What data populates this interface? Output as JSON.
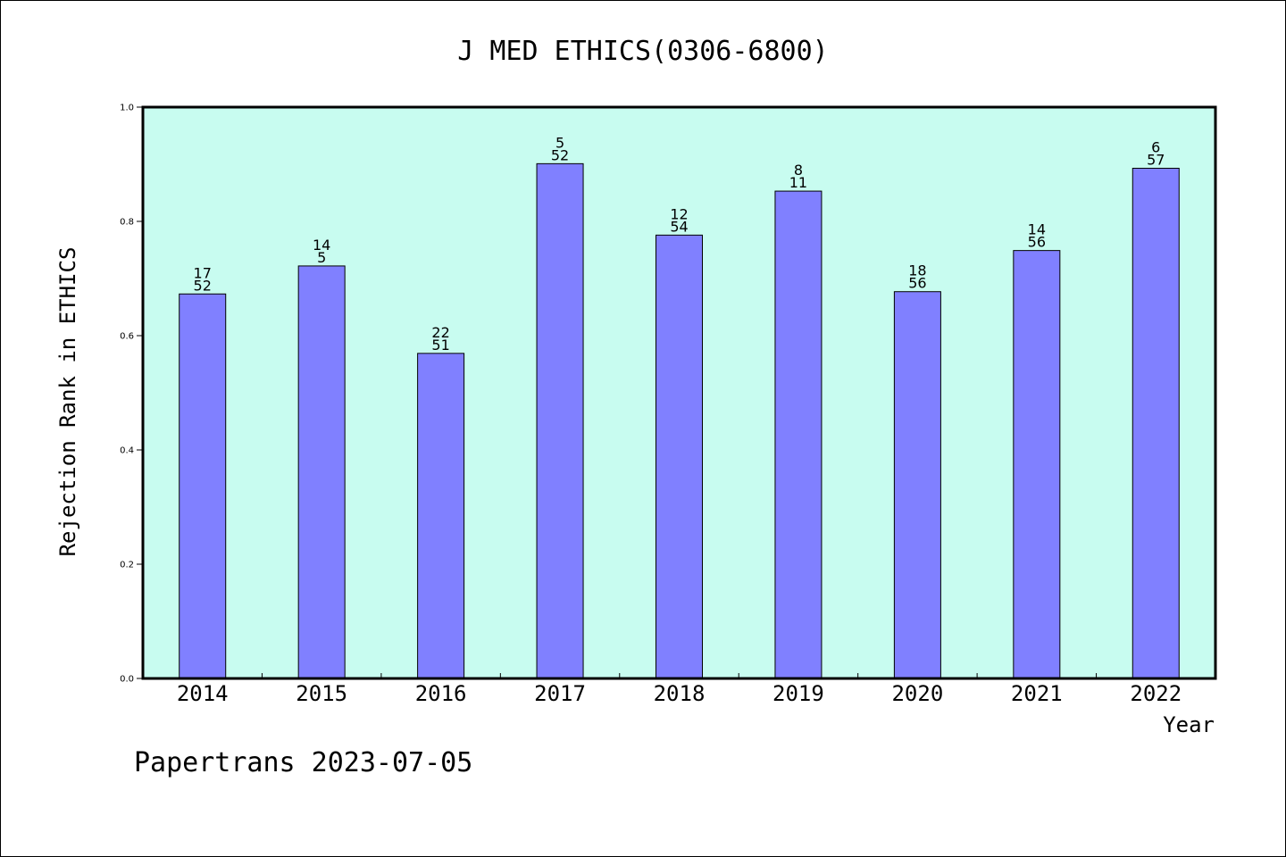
{
  "chart_data": {
    "type": "bar",
    "title": "J MED ETHICS(0306-6800)",
    "xlabel": "Year",
    "ylabel": "Rejection Rank in ETHICS",
    "categories": [
      "2014",
      "2015",
      "2016",
      "2017",
      "2018",
      "2019",
      "2020",
      "2021",
      "2022"
    ],
    "values": [
      0.673,
      0.722,
      0.569,
      0.901,
      0.776,
      0.853,
      0.677,
      0.749,
      0.893
    ],
    "data_labels": [
      [
        "17",
        "52"
      ],
      [
        "14",
        "5"
      ],
      [
        "22",
        "51"
      ],
      [
        "5",
        "52"
      ],
      [
        "12",
        "54"
      ],
      [
        "8",
        "11"
      ],
      [
        "18",
        "56"
      ],
      [
        "14",
        "56"
      ],
      [
        "6",
        "57"
      ]
    ],
    "ylim": [
      0.0,
      1.0
    ],
    "yticks": [
      "0.0",
      "0.2",
      "0.4",
      "0.6",
      "0.8",
      "1.0"
    ],
    "grid": false,
    "colors": {
      "plot_background": "#c8fcf0",
      "bar_fill": "#8080ff",
      "bar_stroke": "#000000"
    }
  },
  "footer": {
    "text": "Papertrans 2023-07-05"
  }
}
